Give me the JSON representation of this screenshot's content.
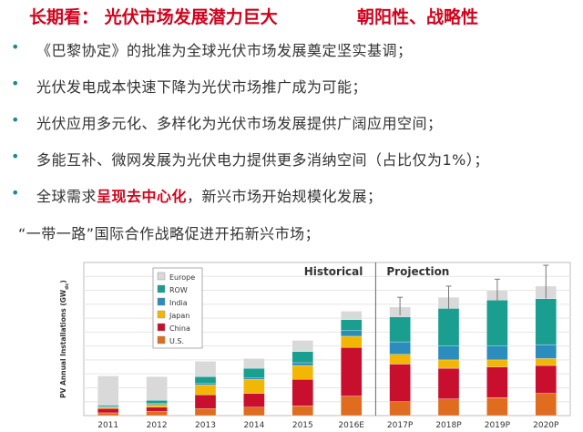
{
  "header": {
    "title": "长期看：  光伏市场发展潜力巨大",
    "subtitle": "朝阳性、战略性"
  },
  "bullets": [
    {
      "text": "《巴黎协定》的批准为全球光伏市场发展奠定坚实基调；"
    },
    {
      "text": "光伏发电成本快速下降为光伏市场推广成为可能；"
    },
    {
      "text": "光伏应用多元化、多样化为光伏市场发展提供广阔应用空间；"
    },
    {
      "text": "多能互补、微网发展为光伏电力提供更多消纳空间（占比仅为1%）；"
    },
    {
      "pre": "全球需求",
      "highlight": "呈现去中心化",
      "post": "，新兴市场开始规模化发展；"
    }
  ],
  "plain_line": "“一带一路”国际合作战略促进开拓新兴市场；",
  "bullet_symbol": "•",
  "colors": {
    "title": "#d0021b",
    "bullet": "#1b8a8f",
    "Europe": "#d9d9d9",
    "ROW": "#1a9e8f",
    "India": "#2b8cbe",
    "Japan": "#f2b705",
    "China": "#c8102e",
    "US": "#e06d1f"
  },
  "chart_data": {
    "type": "bar",
    "stacked": true,
    "categories": [
      "2011",
      "2012",
      "2013",
      "2014",
      "2015",
      "2016E",
      "2017P",
      "2018P",
      "2019P",
      "2020P"
    ],
    "ylabel": "PV Annual Installations (GWdc)",
    "ylabel_main": "PV Annual Installations (GW",
    "ylabel_sub": "dc",
    "ylabel_close": ")",
    "ylim": [
      0,
      110
    ],
    "grid": true,
    "region_labels": [
      "Historical",
      "Projection"
    ],
    "series": [
      {
        "name": "U.S.",
        "key": "US",
        "values": [
          2,
          3,
          5,
          6,
          7,
          14,
          10,
          12,
          13,
          16
        ]
      },
      {
        "name": "China",
        "key": "China",
        "values": [
          3,
          3,
          10,
          10,
          19,
          35,
          27,
          22,
          22,
          20
        ]
      },
      {
        "name": "Japan",
        "key": "Japan",
        "values": [
          1,
          2,
          7,
          10,
          10,
          8,
          7,
          6,
          5,
          5
        ]
      },
      {
        "name": "India",
        "key": "India",
        "values": [
          0.5,
          1,
          1,
          1,
          2,
          4,
          9,
          10,
          10,
          10
        ]
      },
      {
        "name": "ROW",
        "key": "ROW",
        "values": [
          1,
          2,
          5,
          7,
          8,
          8,
          18,
          27,
          33,
          33
        ]
      },
      {
        "name": "Europe",
        "key": "Europe",
        "values": [
          21,
          17,
          11,
          7,
          8,
          6,
          7,
          8,
          7,
          9
        ]
      }
    ],
    "error_bars": [
      null,
      null,
      null,
      null,
      null,
      null,
      [
        72,
        85
      ],
      [
        76,
        93
      ],
      [
        82,
        98
      ],
      [
        84,
        108
      ]
    ]
  }
}
